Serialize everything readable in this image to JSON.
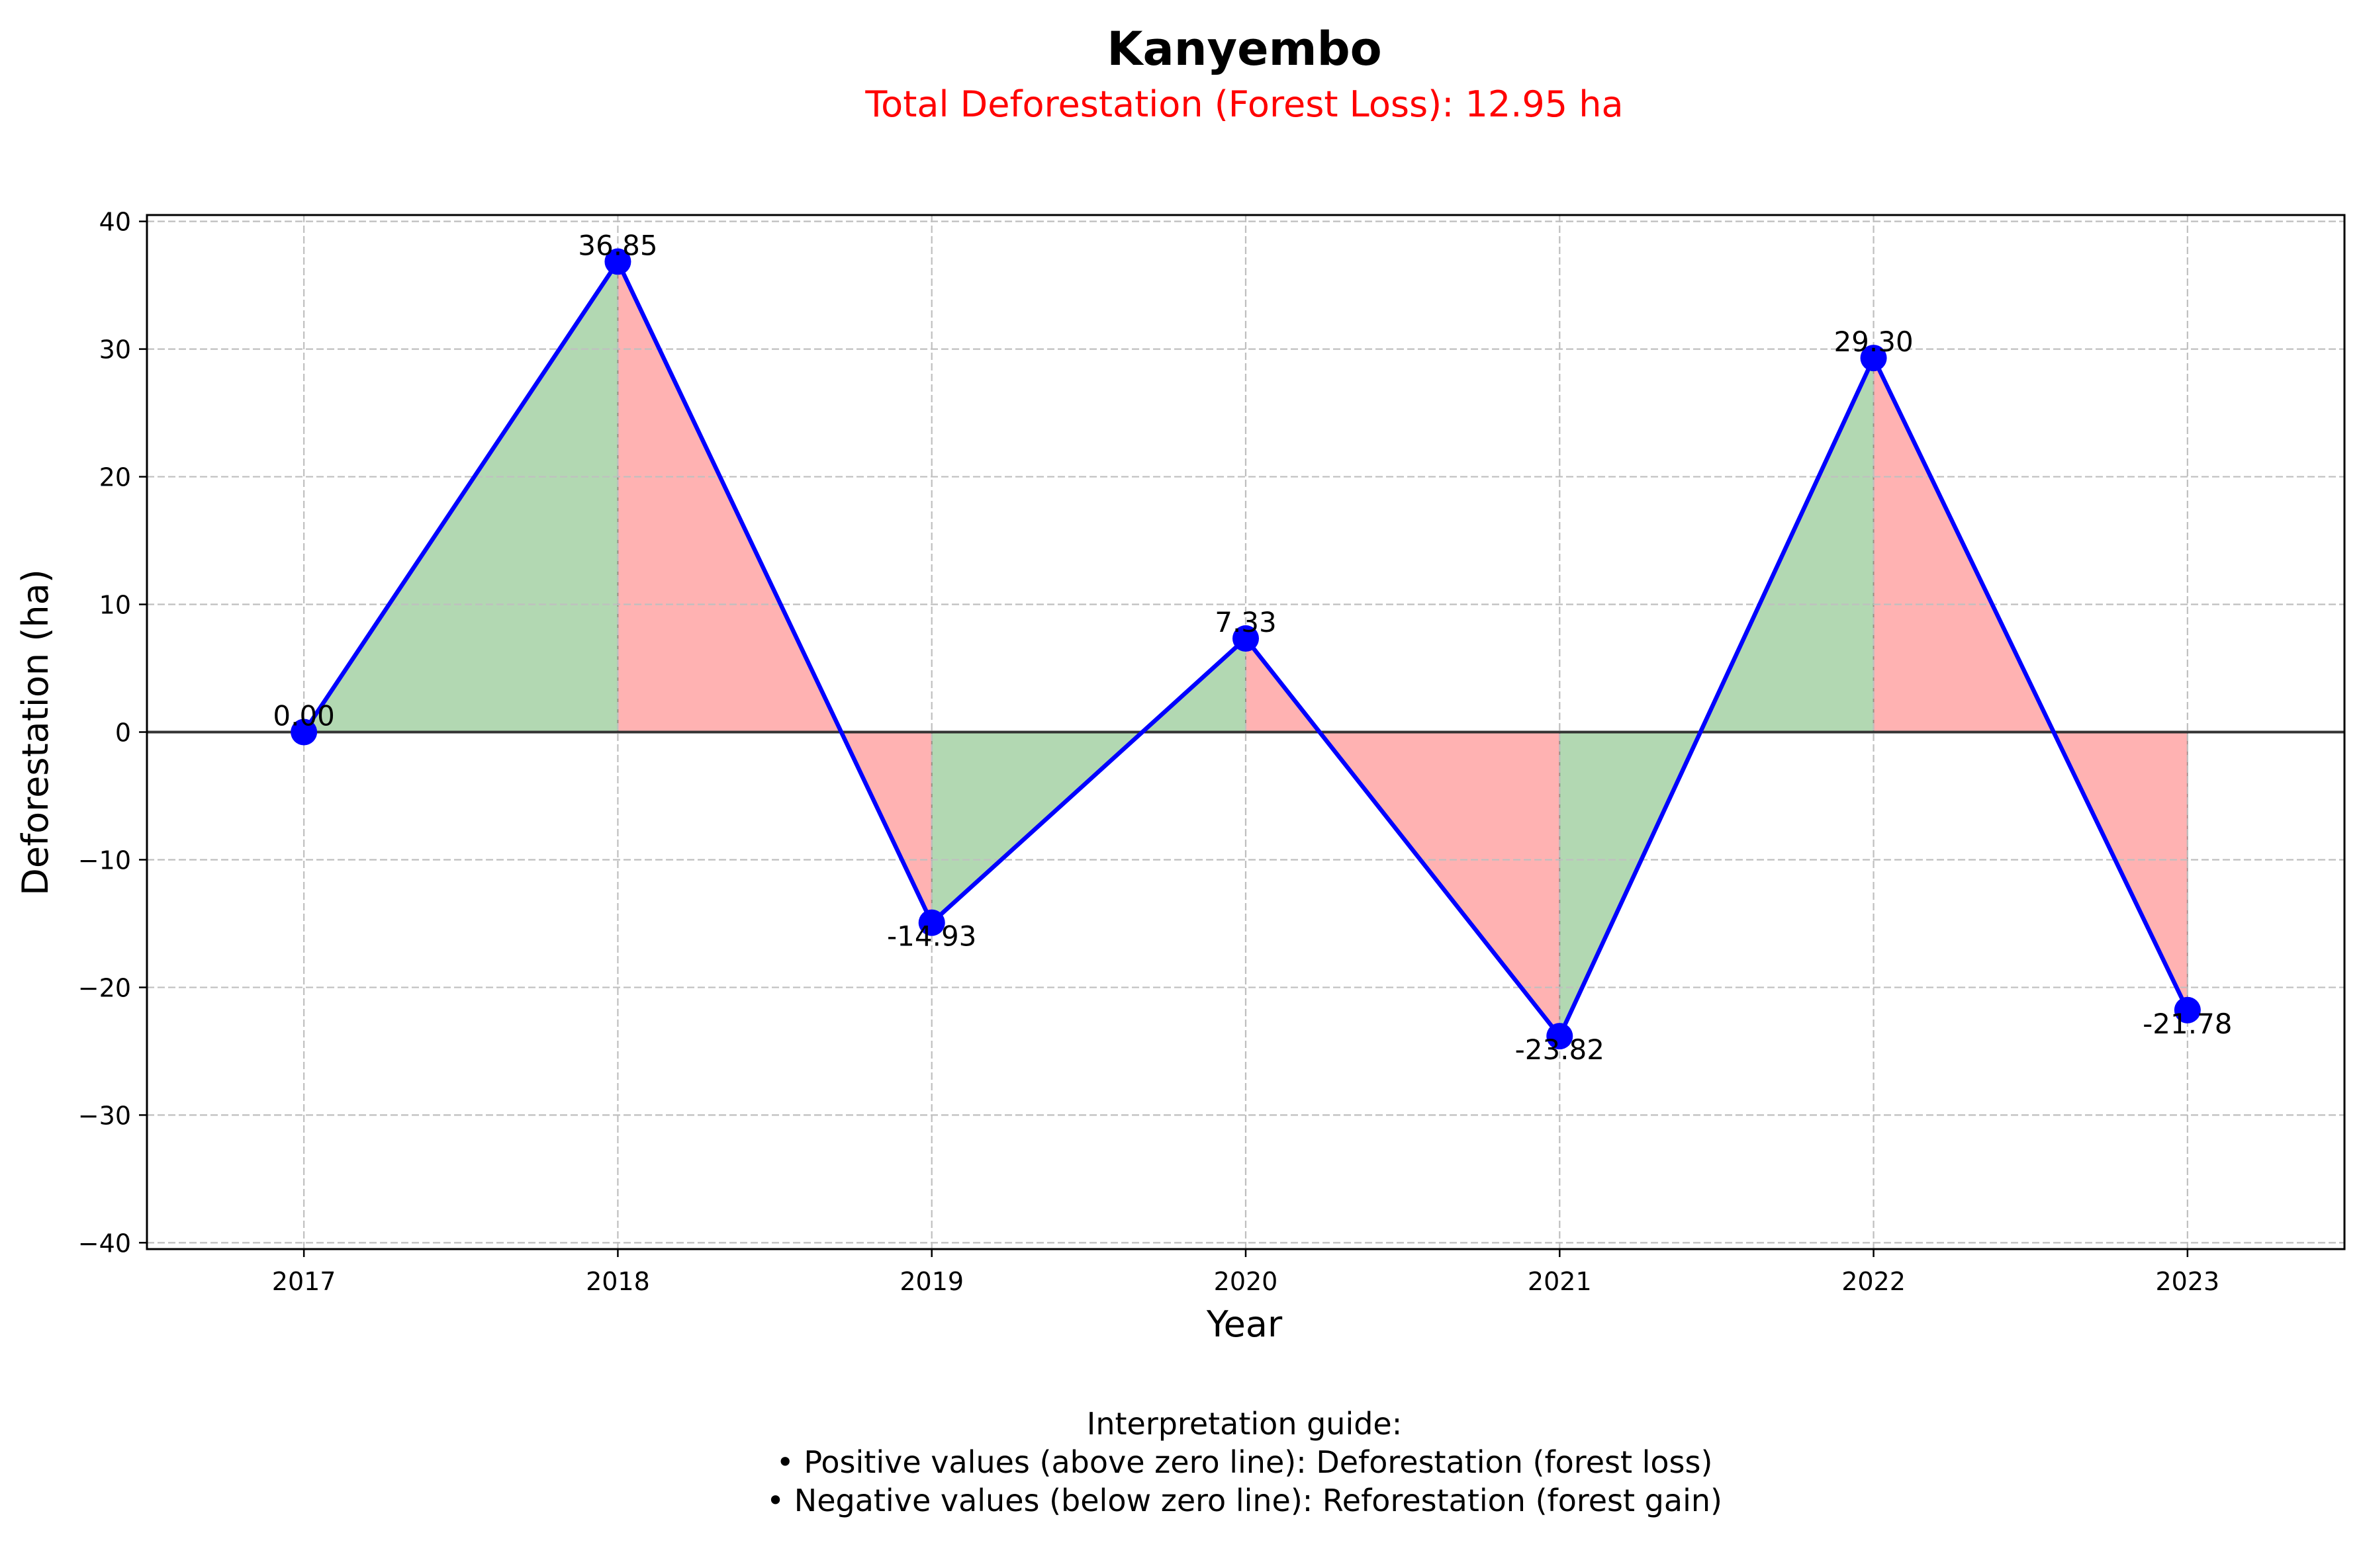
{
  "chart_data": {
    "type": "line",
    "title": "Kanyembo",
    "subtitle": "Total Deforestation (Forest Loss): 12.95 ha",
    "xlabel": "Year",
    "ylabel": "Deforestation (ha)",
    "categories": [
      "2017",
      "2018",
      "2019",
      "2020",
      "2021",
      "2022",
      "2023"
    ],
    "values": [
      0.0,
      36.85,
      -14.93,
      7.33,
      -23.82,
      29.3,
      -21.78
    ],
    "data_labels": [
      "0.00",
      "36.85",
      "-14.93",
      "7.33",
      "-23.82",
      "29.30",
      "-21.78"
    ],
    "ylim": [
      -40.5,
      40.5
    ],
    "yticks": [
      -40,
      -30,
      -20,
      -10,
      0,
      10,
      20,
      30,
      40
    ],
    "ytick_labels": [
      "−40",
      "−30",
      "−20",
      "−10",
      "0",
      "10",
      "20",
      "30",
      "40"
    ],
    "xlim": [
      -0.5,
      6.5
    ],
    "grid": true,
    "zero_line": true,
    "colors": {
      "line": "#0000ff",
      "marker": "#0000ff",
      "increase_fill": "#b2d8b2",
      "decrease_fill": "#ffb2b2",
      "zero_line": "#333333",
      "grid": "#bfbfbf",
      "title": "#000000",
      "subtitle": "#ff0000"
    },
    "guide": {
      "heading": "Interpretation guide:",
      "lines": [
        "• Positive values (above zero line): Deforestation (forest loss)",
        "• Negative values (below zero line): Reforestation (forest gain)"
      ]
    }
  }
}
